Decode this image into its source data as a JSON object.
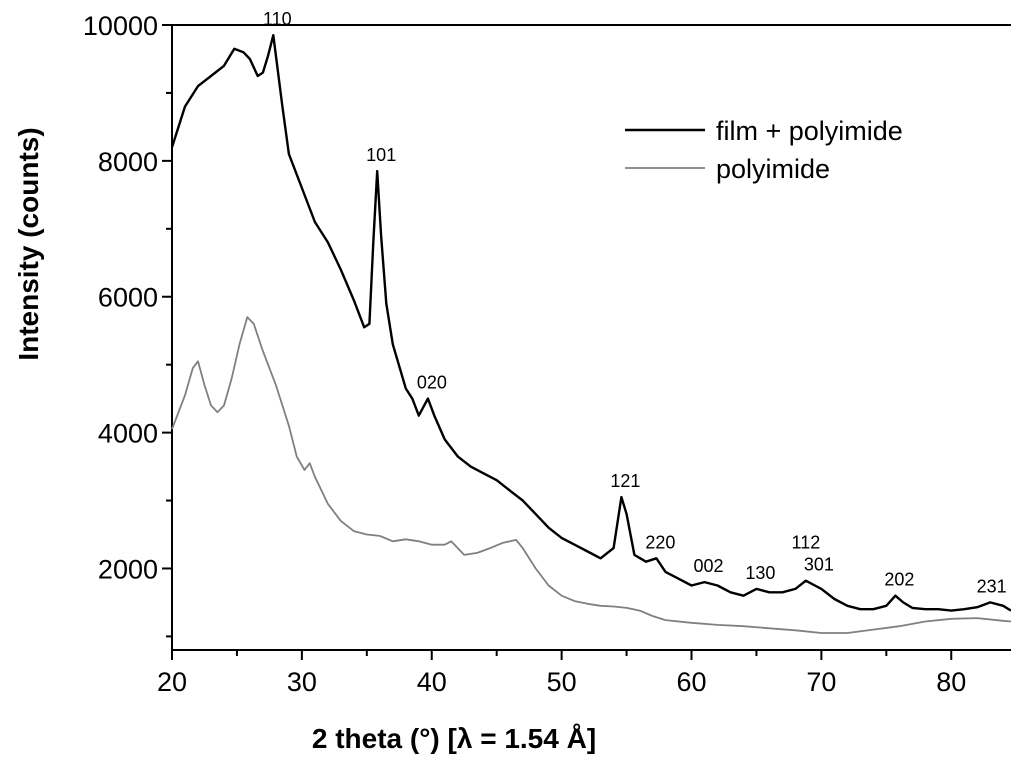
{
  "chart_data": {
    "type": "line",
    "title": "",
    "xlabel": "2 theta (°) [λ = 1.54 Å]",
    "ylabel": "Intensity (counts)",
    "xlim": [
      20,
      84.6
    ],
    "ylim": [
      800,
      10000
    ],
    "xticks": [
      20,
      30,
      40,
      50,
      60,
      70,
      80
    ],
    "yticks": [
      2000,
      4000,
      6000,
      8000,
      10000
    ],
    "grid": false,
    "legend_position": "top-right",
    "series": [
      {
        "name": "film + polyimide",
        "color": "#000000",
        "points": [
          [
            20,
            8200
          ],
          [
            20.5,
            8500
          ],
          [
            21,
            8800
          ],
          [
            22,
            9100
          ],
          [
            23,
            9250
          ],
          [
            24,
            9400
          ],
          [
            24.8,
            9650
          ],
          [
            25.5,
            9600
          ],
          [
            26,
            9500
          ],
          [
            26.6,
            9250
          ],
          [
            27,
            9300
          ],
          [
            27.4,
            9550
          ],
          [
            27.8,
            9850
          ],
          [
            28.1,
            9400
          ],
          [
            28.5,
            8800
          ],
          [
            29,
            8100
          ],
          [
            30,
            7600
          ],
          [
            31,
            7100
          ],
          [
            32,
            6800
          ],
          [
            33,
            6400
          ],
          [
            34,
            5950
          ],
          [
            34.8,
            5550
          ],
          [
            35.2,
            5600
          ],
          [
            35.5,
            6800
          ],
          [
            35.8,
            7850
          ],
          [
            36.1,
            6900
          ],
          [
            36.5,
            5900
          ],
          [
            37,
            5300
          ],
          [
            38,
            4650
          ],
          [
            38.5,
            4500
          ],
          [
            39,
            4250
          ],
          [
            39.7,
            4500
          ],
          [
            40.2,
            4250
          ],
          [
            41,
            3900
          ],
          [
            42,
            3650
          ],
          [
            43,
            3500
          ],
          [
            44,
            3400
          ],
          [
            45,
            3300
          ],
          [
            46,
            3150
          ],
          [
            47,
            3000
          ],
          [
            48,
            2800
          ],
          [
            49,
            2600
          ],
          [
            50,
            2450
          ],
          [
            51,
            2350
          ],
          [
            52,
            2250
          ],
          [
            53,
            2150
          ],
          [
            54,
            2300
          ],
          [
            54.6,
            3050
          ],
          [
            55,
            2800
          ],
          [
            55.6,
            2200
          ],
          [
            56.5,
            2100
          ],
          [
            57.3,
            2150
          ],
          [
            58,
            1950
          ],
          [
            59,
            1850
          ],
          [
            60,
            1750
          ],
          [
            61,
            1800
          ],
          [
            62,
            1750
          ],
          [
            63,
            1650
          ],
          [
            64,
            1600
          ],
          [
            65,
            1700
          ],
          [
            66,
            1650
          ],
          [
            67,
            1650
          ],
          [
            68,
            1700
          ],
          [
            68.8,
            1820
          ],
          [
            69.5,
            1750
          ],
          [
            70,
            1700
          ],
          [
            71,
            1550
          ],
          [
            72,
            1450
          ],
          [
            73,
            1400
          ],
          [
            74,
            1400
          ],
          [
            75,
            1450
          ],
          [
            75.7,
            1600
          ],
          [
            76.3,
            1500
          ],
          [
            77,
            1420
          ],
          [
            78,
            1400
          ],
          [
            79,
            1400
          ],
          [
            80,
            1380
          ],
          [
            81,
            1400
          ],
          [
            82,
            1430
          ],
          [
            83,
            1500
          ],
          [
            84,
            1450
          ],
          [
            84.6,
            1380
          ]
        ]
      },
      {
        "name": "polyimide",
        "color": "#808080",
        "points": [
          [
            20,
            4050
          ],
          [
            20.5,
            4300
          ],
          [
            21,
            4550
          ],
          [
            21.6,
            4950
          ],
          [
            22,
            5050
          ],
          [
            22.5,
            4700
          ],
          [
            23,
            4400
          ],
          [
            23.5,
            4300
          ],
          [
            24,
            4400
          ],
          [
            24.6,
            4800
          ],
          [
            25.2,
            5300
          ],
          [
            25.8,
            5700
          ],
          [
            26.3,
            5600
          ],
          [
            27,
            5200
          ],
          [
            28,
            4700
          ],
          [
            29,
            4100
          ],
          [
            29.6,
            3650
          ],
          [
            30.2,
            3450
          ],
          [
            30.6,
            3550
          ],
          [
            31,
            3350
          ],
          [
            32,
            2950
          ],
          [
            33,
            2700
          ],
          [
            34,
            2550
          ],
          [
            35,
            2500
          ],
          [
            36,
            2480
          ],
          [
            37,
            2400
          ],
          [
            38,
            2430
          ],
          [
            39,
            2400
          ],
          [
            40,
            2350
          ],
          [
            41,
            2350
          ],
          [
            41.5,
            2400
          ],
          [
            42.5,
            2200
          ],
          [
            43.5,
            2230
          ],
          [
            44.5,
            2300
          ],
          [
            45.5,
            2380
          ],
          [
            46.5,
            2420
          ],
          [
            47,
            2300
          ],
          [
            48,
            2000
          ],
          [
            49,
            1750
          ],
          [
            50,
            1600
          ],
          [
            51,
            1520
          ],
          [
            52,
            1480
          ],
          [
            53,
            1450
          ],
          [
            54,
            1440
          ],
          [
            55,
            1420
          ],
          [
            56,
            1380
          ],
          [
            57,
            1300
          ],
          [
            58,
            1240
          ],
          [
            60,
            1200
          ],
          [
            62,
            1170
          ],
          [
            64,
            1150
          ],
          [
            66,
            1120
          ],
          [
            68,
            1090
          ],
          [
            70,
            1050
          ],
          [
            72,
            1050
          ],
          [
            74,
            1100
          ],
          [
            76,
            1150
          ],
          [
            78,
            1220
          ],
          [
            80,
            1260
          ],
          [
            82,
            1270
          ],
          [
            84,
            1230
          ],
          [
            84.6,
            1220
          ]
        ]
      }
    ],
    "annotations": [
      {
        "text": "110",
        "x": 27.8,
        "y": 9850
      },
      {
        "text": "101",
        "x": 35.8,
        "y": 7850
      },
      {
        "text": "020",
        "x": 39.7,
        "y": 4500
      },
      {
        "text": "121",
        "x": 54.6,
        "y": 3050
      },
      {
        "text": "220",
        "x": 57.3,
        "y": 2150
      },
      {
        "text": "002",
        "x": 61.0,
        "y": 1800
      },
      {
        "text": "130",
        "x": 65.0,
        "y": 1700
      },
      {
        "text": "112",
        "x": 68.5,
        "y": 2150
      },
      {
        "text": "301",
        "x": 69.5,
        "y": 1820
      },
      {
        "text": "202",
        "x": 75.7,
        "y": 1600
      },
      {
        "text": "231",
        "x": 82.8,
        "y": 1500
      }
    ]
  }
}
